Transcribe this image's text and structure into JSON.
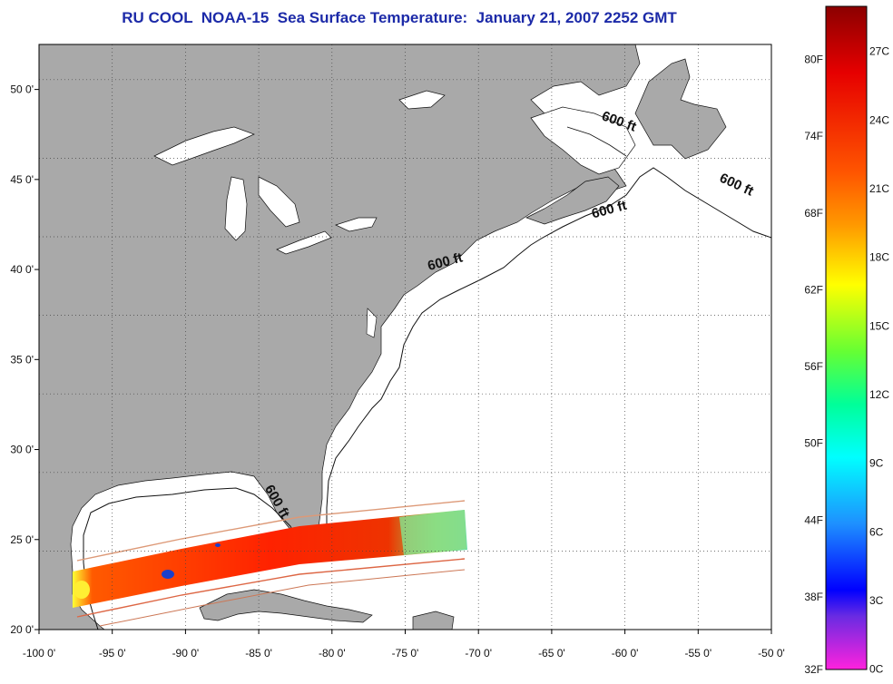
{
  "title": "RU COOL  NOAA-15  Sea Surface Temperature:  January 21, 2007 2252 GMT",
  "map": {
    "lon_range": [
      -100,
      -50
    ],
    "lat_range": [
      20,
      52.5
    ],
    "lon_ticks": [
      "-100 0'",
      "-95 0'",
      "-90 0'",
      "-85 0'",
      "-80 0'",
      "-75 0'",
      "-70 0'",
      "-65 0'",
      "-60 0'",
      "-55 0'",
      "-50 0'"
    ],
    "lat_ticks": [
      "20 0'",
      "25 0'",
      "30 0'",
      "35 0'",
      "40 0'",
      "45 0'",
      "50 0'"
    ],
    "grid": true,
    "land_color": "#a9a9a9",
    "water_color": "#ffffff",
    "isobath_labels": [
      {
        "text": "600 ft",
        "lon": -60.5,
        "lat": 48.0,
        "angle": 20
      },
      {
        "text": "600 ft",
        "lon": -52.5,
        "lat": 44.5,
        "angle": 25
      },
      {
        "text": "600 ft",
        "lon": -61.0,
        "lat": 43.1,
        "angle": -15
      },
      {
        "text": "600 ft",
        "lon": -72.2,
        "lat": 40.2,
        "angle": -15
      },
      {
        "text": "600 ft",
        "lon": -84.0,
        "lat": 27.0,
        "angle": 60
      }
    ]
  },
  "colorbar": {
    "f_labels": [
      "80F",
      "74F",
      "68F",
      "62F",
      "56F",
      "50F",
      "44F",
      "38F",
      "32F"
    ],
    "c_labels": [
      "27C",
      "24C",
      "21C",
      "18C",
      "15C",
      "12C",
      "9C",
      "6C",
      "3C",
      "0C"
    ],
    "colors": [
      "#8b0000",
      "#ff0000",
      "#ff8c00",
      "#ffff00",
      "#7cfc00",
      "#00ff7f",
      "#00ffff",
      "#1e90ff",
      "#0000ff",
      "#8a2be2",
      "#ff1493"
    ]
  }
}
